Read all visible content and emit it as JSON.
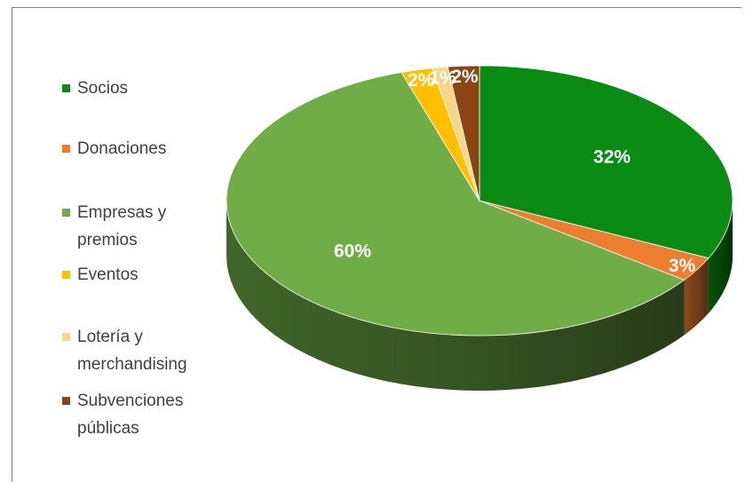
{
  "chart_data": {
    "type": "pie",
    "style": "3d",
    "legend_position": "left",
    "categories": [
      "Socios",
      "Donaciones",
      "Empresas y\npremios",
      "Eventos",
      "Lotería y\nmerchandising",
      "Subvenciones\npúblicas"
    ],
    "values": [
      32,
      3,
      60,
      2,
      1,
      2
    ],
    "data_labels": [
      "32%",
      "3%",
      "60%",
      "2%",
      "1%",
      "2%"
    ],
    "colors": [
      "#0a8c14",
      "#ed7d31",
      "#70ad47",
      "#ffc000",
      "#f7d68a",
      "#8b4513"
    ]
  }
}
